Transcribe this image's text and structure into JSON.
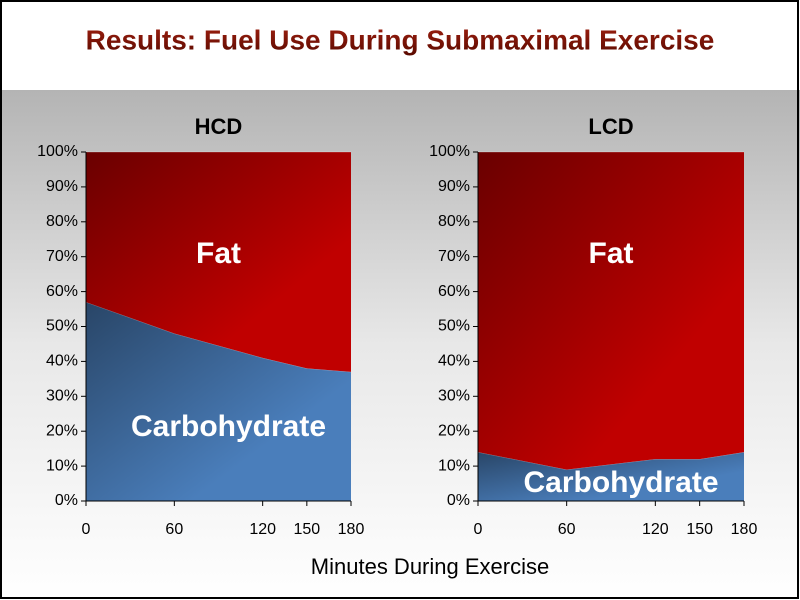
{
  "title": "Results: Fuel Use During Submaximal Exercise",
  "x_label": "Minutes During Exercise",
  "chart_data": [
    {
      "type": "area",
      "stacked": true,
      "title": "HCD",
      "x": [
        0,
        60,
        120,
        150,
        180
      ],
      "xlim": [
        0,
        180
      ],
      "xticks": [
        0,
        60,
        120,
        150,
        180
      ],
      "ylim": [
        0,
        100
      ],
      "yticks": [
        {
          "value": 0,
          "label": "0%"
        },
        {
          "value": 10,
          "label": "10%"
        },
        {
          "value": 20,
          "label": "20%"
        },
        {
          "value": 30,
          "label": "30%"
        },
        {
          "value": 40,
          "label": "40%"
        },
        {
          "value": 50,
          "label": "50%"
        },
        {
          "value": 60,
          "label": "60%"
        },
        {
          "value": 70,
          "label": "70%"
        },
        {
          "value": 80,
          "label": "80%"
        },
        {
          "value": 90,
          "label": "90%"
        },
        {
          "value": 100,
          "label": "100%"
        }
      ],
      "series": [
        {
          "name": "Carbohydrate",
          "color": "#4a7ebb",
          "values": [
            57,
            48,
            41,
            38,
            37
          ]
        },
        {
          "name": "Fat",
          "color": "#c00000",
          "values": [
            43,
            52,
            59,
            62,
            63
          ]
        }
      ]
    },
    {
      "type": "area",
      "stacked": true,
      "title": "LCD",
      "x": [
        0,
        60,
        120,
        150,
        180
      ],
      "xlim": [
        0,
        180
      ],
      "xticks": [
        0,
        60,
        120,
        150,
        180
      ],
      "ylim": [
        0,
        100
      ],
      "yticks": [
        {
          "value": 0,
          "label": "0%"
        },
        {
          "value": 10,
          "label": "10%"
        },
        {
          "value": 20,
          "label": "20%"
        },
        {
          "value": 30,
          "label": "30%"
        },
        {
          "value": 40,
          "label": "40%"
        },
        {
          "value": 50,
          "label": "50%"
        },
        {
          "value": 60,
          "label": "60%"
        },
        {
          "value": 70,
          "label": "70%"
        },
        {
          "value": 80,
          "label": "80%"
        },
        {
          "value": 90,
          "label": "90%"
        },
        {
          "value": 100,
          "label": "100%"
        }
      ],
      "series": [
        {
          "name": "Carbohydrate",
          "color": "#4a7ebb",
          "values": [
            14,
            9,
            12,
            12,
            14
          ]
        },
        {
          "name": "Fat",
          "color": "#c00000",
          "values": [
            86,
            91,
            88,
            88,
            86
          ]
        }
      ]
    }
  ]
}
